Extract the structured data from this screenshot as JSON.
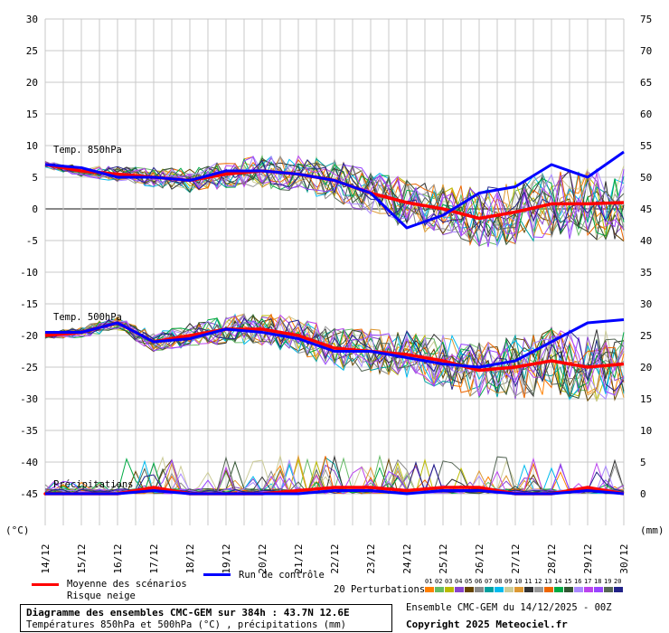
{
  "left_axis": {
    "ticks": [
      "30",
      "25",
      "20",
      "15",
      "10",
      "5",
      "0",
      "-5",
      "-10",
      "-15",
      "-20",
      "-25",
      "-30",
      "-35",
      "-40",
      "-45"
    ],
    "unit": "(°C)"
  },
  "right_axis": {
    "ticks": [
      "75",
      "70",
      "65",
      "60",
      "55",
      "50",
      "45",
      "40",
      "35",
      "30",
      "25",
      "20",
      "15",
      "10",
      "5",
      "0"
    ],
    "unit": "(mm)"
  },
  "dates": [
    "14/12",
    "15/12",
    "16/12",
    "17/12",
    "18/12",
    "19/12",
    "20/12",
    "21/12",
    "22/12",
    "23/12",
    "24/12",
    "25/12",
    "26/12",
    "27/12",
    "28/12",
    "29/12",
    "30/12"
  ],
  "panel_labels": {
    "t850": "Temp. 850hPa",
    "t500": "Temp. 500hPa",
    "precip": "Précipitations"
  },
  "legend": {
    "mean_label": "Moyenne des scénarios",
    "snow_label": "Risque neige",
    "control_label": "Run de contrôle",
    "perturb_label": "20 Perturbations",
    "perturb_numbers": [
      "01",
      "02",
      "03",
      "04",
      "05",
      "06",
      "07",
      "08",
      "09",
      "10",
      "11",
      "12",
      "13",
      "14",
      "15",
      "16",
      "17",
      "18",
      "19",
      "20"
    ],
    "perturb_colors": [
      "#ff8000",
      "#66bb66",
      "#bbbb00",
      "#8844cc",
      "#664400",
      "#888888",
      "#00a0a0",
      "#00bbee",
      "#cccc99",
      "#dd9933",
      "#333333",
      "#999999",
      "#ee6600",
      "#00aa44",
      "#335533",
      "#aa88ff",
      "#bb44ee",
      "#9944ff",
      "#556655",
      "#222288"
    ]
  },
  "title": {
    "line1": "Diagramme des ensembles CMC-GEM sur 384h : 43.7N 12.6E",
    "line2": "Températures 850hPa et 500hPa (°C) , précipitations (mm)"
  },
  "footer": {
    "run": "Ensemble CMC-GEM du 14/12/2025 - 00Z",
    "copyright": "Copyright 2025 Meteociel.fr"
  },
  "colors": {
    "mean": "#ff0000",
    "control": "#0000ff",
    "grid": "#c8c8c8"
  },
  "chart_data": {
    "type": "line",
    "x": [
      "14/12",
      "15/12",
      "16/12",
      "17/12",
      "18/12",
      "19/12",
      "20/12",
      "21/12",
      "22/12",
      "23/12",
      "24/12",
      "25/12",
      "26/12",
      "27/12",
      "28/12",
      "29/12",
      "30/12"
    ],
    "ylim": [
      -45,
      30
    ],
    "y2lim": [
      0,
      75
    ],
    "series": [
      {
        "name": "Moyenne des scénarios",
        "panel": "t850",
        "values": [
          7,
          6,
          5.5,
          5,
          4.5,
          5.5,
          6,
          5.5,
          4.5,
          2.5,
          1,
          0,
          -1.5,
          -0.5,
          0.8,
          0.8,
          1
        ]
      },
      {
        "name": "Run de contrôle",
        "panel": "t850",
        "values": [
          7,
          6.5,
          5,
          5,
          4.5,
          6,
          6,
          5.5,
          4.5,
          2.5,
          -3,
          -1,
          2.5,
          3.5,
          7,
          5,
          9
        ]
      },
      {
        "name": "Moyenne des scénarios",
        "panel": "t500",
        "values": [
          -20,
          -19.5,
          -18,
          -21,
          -20,
          -19,
          -19,
          -20,
          -22,
          -22.5,
          -23,
          -24,
          -25.5,
          -25,
          -24,
          -25,
          -24.5
        ]
      },
      {
        "name": "Run de contrôle",
        "panel": "t500",
        "values": [
          -19.5,
          -19.5,
          -18,
          -21,
          -20.5,
          -19,
          -19.5,
          -20.5,
          -22.5,
          -22.5,
          -23.5,
          -24.5,
          -25,
          -24,
          -21,
          -18,
          -17.5
        ]
      },
      {
        "name": "Moyenne des scénarios",
        "panel": "precip",
        "values": [
          0,
          0,
          0,
          1,
          0,
          0,
          0,
          0.5,
          1,
          1,
          0.5,
          1,
          1,
          0,
          0,
          1,
          0
        ]
      },
      {
        "name": "Run de contrôle",
        "panel": "precip",
        "values": [
          0,
          0,
          0,
          0.5,
          0,
          0,
          0,
          0,
          0.5,
          0.5,
          0,
          0.5,
          0.5,
          0,
          0,
          0.5,
          0
        ]
      }
    ]
  }
}
